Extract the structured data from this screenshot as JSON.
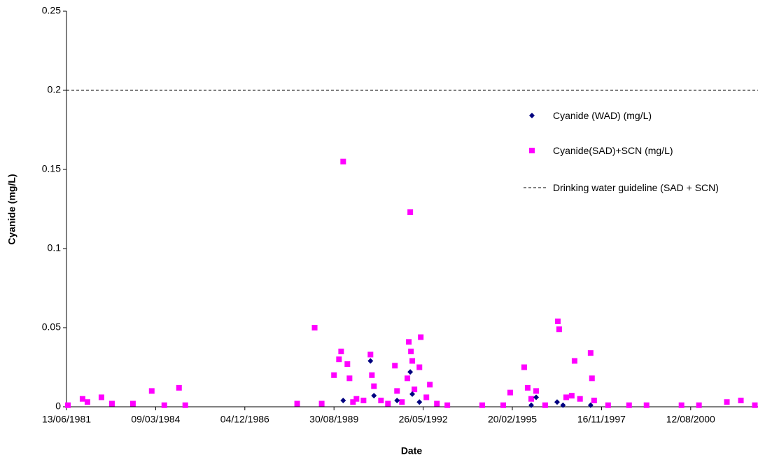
{
  "chart_data": {
    "type": "scatter",
    "x_label": "Date",
    "y_label": "Cyanide (mg/L)",
    "xlim": [
      "13/06/1981",
      "06/09/2002"
    ],
    "xticks": [
      "13/06/1981",
      "09/03/1984",
      "04/12/1986",
      "30/08/1989",
      "26/05/1992",
      "20/02/1995",
      "16/11/1997",
      "12/08/2000"
    ],
    "ylim": [
      0,
      0.25
    ],
    "yticks": [
      0,
      0.05,
      0.1,
      0.15,
      0.2,
      0.25
    ],
    "legend": "right",
    "series": [
      {
        "name": "Cyanide (WAD) (mg/L)",
        "color": "#000080",
        "marker": "diamond",
        "x": [
          "11/12/1989",
          "13/10/1990",
          "21/11/1990",
          "07/08/1991",
          "02/01/1992",
          "25/01/1992",
          "14/04/1992",
          "20/09/1995",
          "14/11/1995",
          "06/07/1996",
          "10/09/1996",
          "17/07/1997"
        ],
        "values": [
          0.004,
          0.029,
          0.007,
          0.004,
          0.022,
          0.008,
          0.003,
          0.001,
          0.006,
          0.003,
          0.001,
          0.001
        ]
      },
      {
        "name": "Cyanide(SAD)+SCN (mg/L)",
        "color": "#ff00ff",
        "marker": "square",
        "x": [
          "29/06/1981",
          "10/12/1981",
          "03/02/1982",
          "10/07/1982",
          "05/11/1982",
          "28/06/1983",
          "25/01/1984",
          "14/06/1984",
          "26/11/1984",
          "04/02/1985",
          "13/07/1988",
          "25/01/1989",
          "14/04/1989",
          "30/08/1989",
          "25/10/1989",
          "18/11/1989",
          "11/12/1989",
          "27/01/1990",
          "20/02/1990",
          "31/03/1990",
          "09/05/1990",
          "27/07/1990",
          "13/10/1990",
          "29/10/1990",
          "21/11/1990",
          "08/02/1991",
          "27/04/1991",
          "14/07/1991",
          "07/08/1991",
          "01/10/1991",
          "01/12/1991",
          "17/12/1991",
          "02/01/1992",
          "10/01/1992",
          "25/01/1992",
          "18/02/1992",
          "14/04/1992",
          "29/04/1992",
          "01/07/1992",
          "09/08/1992",
          "27/10/1992",
          "21/02/1993",
          "19/03/1994",
          "10/11/1994",
          "27/01/1995",
          "03/07/1995",
          "11/08/1995",
          "20/09/1995",
          "14/11/1995",
          "23/02/1996",
          "14/07/1996",
          "29/07/1996",
          "16/10/1996",
          "17/12/1996",
          "18/01/1997",
          "20/03/1997",
          "17/07/1997",
          "01/08/1997",
          "25/08/1997",
          "29/01/1998",
          "21/09/1998",
          "05/04/1999",
          "01/05/2000",
          "13/11/2000",
          "22/09/2001",
          "26/02/2002",
          "02/08/2002"
        ],
        "values": [
          0.001,
          0.005,
          0.003,
          0.006,
          0.002,
          0.002,
          0.01,
          0.001,
          0.012,
          0.001,
          0.002,
          0.05,
          0.002,
          0.02,
          0.03,
          0.035,
          0.155,
          0.027,
          0.018,
          0.003,
          0.005,
          0.004,
          0.033,
          0.02,
          0.013,
          0.004,
          0.002,
          0.026,
          0.01,
          0.003,
          0.018,
          0.041,
          0.123,
          0.035,
          0.029,
          0.011,
          0.025,
          0.044,
          0.006,
          0.014,
          0.002,
          0.001,
          0.001,
          0.001,
          0.009,
          0.025,
          0.012,
          0.005,
          0.01,
          0.001,
          0.054,
          0.049,
          0.006,
          0.007,
          0.029,
          0.005,
          0.034,
          0.018,
          0.004,
          0.001,
          0.001,
          0.001,
          0.001,
          0.001,
          0.003,
          0.004,
          0.001
        ]
      }
    ],
    "reference_line": {
      "name": "Drinking water guideline (SAD + SCN)",
      "value": 0.2,
      "color": "#000000"
    }
  }
}
